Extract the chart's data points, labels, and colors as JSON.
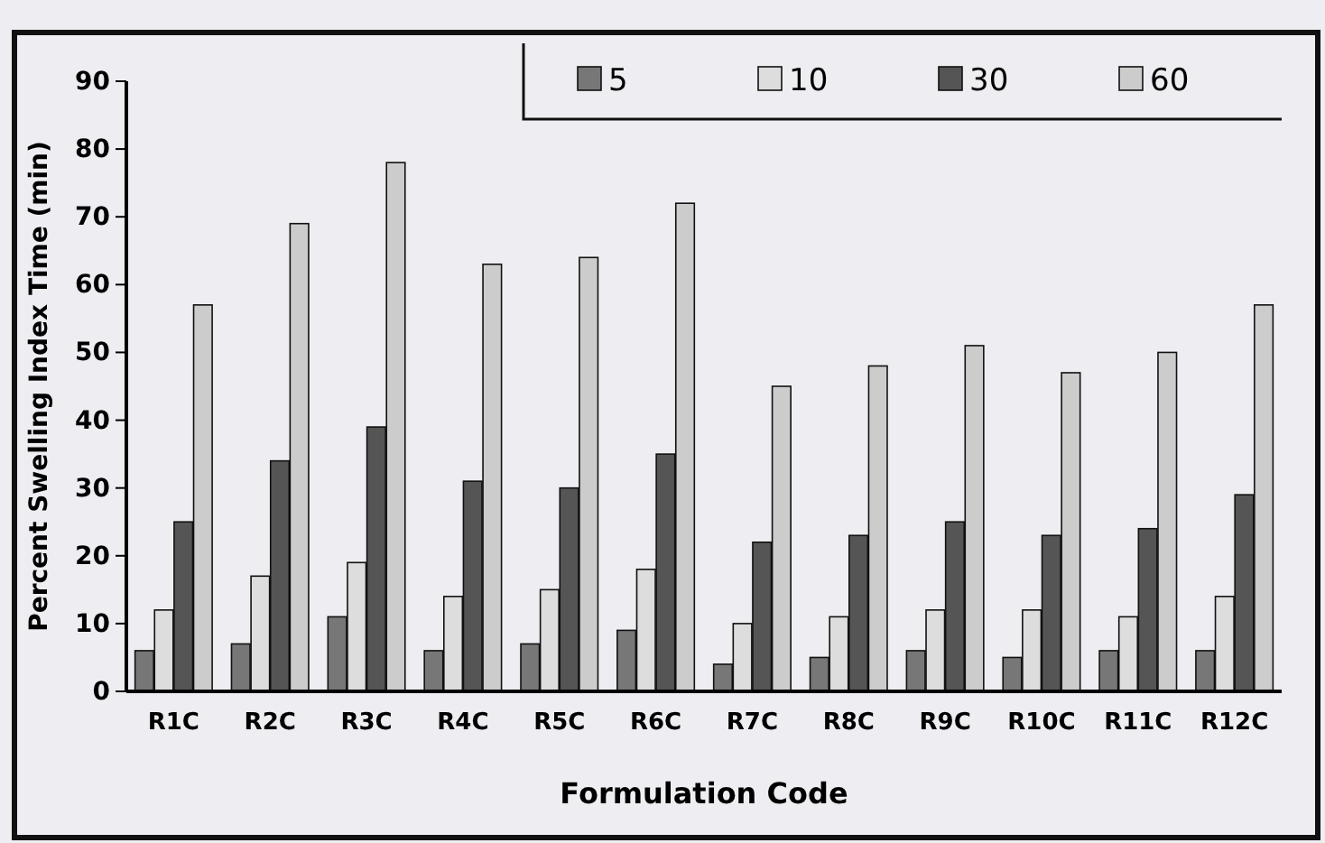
{
  "chart_data": {
    "type": "bar",
    "xlabel": "Formulation Code",
    "ylabel": "Percent Swelling Index Time (min)",
    "categories": [
      "R1C",
      "R2C",
      "R3C",
      "R4C",
      "R5C",
      "R6C",
      "R7C",
      "R8C",
      "R9C",
      "R10C",
      "R11C",
      "R12C"
    ],
    "series": [
      {
        "name": "5",
        "color": "#777777",
        "values": [
          6,
          7,
          11,
          6,
          7,
          9,
          4,
          5,
          6,
          5,
          6,
          6
        ]
      },
      {
        "name": "10",
        "color": "#dddddd",
        "values": [
          12,
          17,
          19,
          14,
          15,
          18,
          10,
          11,
          12,
          12,
          11,
          14
        ]
      },
      {
        "name": "30",
        "color": "#555555",
        "values": [
          25,
          34,
          39,
          31,
          30,
          35,
          22,
          23,
          25,
          23,
          24,
          29
        ]
      },
      {
        "name": "60",
        "color": "#cccccc",
        "values": [
          57,
          69,
          78,
          63,
          64,
          72,
          45,
          48,
          51,
          47,
          50,
          57
        ]
      }
    ],
    "ylim": [
      0,
      90
    ],
    "yticks": [
      0,
      10,
      20,
      30,
      40,
      50,
      60,
      70,
      80,
      90
    ],
    "grid": false,
    "legend": "top right"
  }
}
